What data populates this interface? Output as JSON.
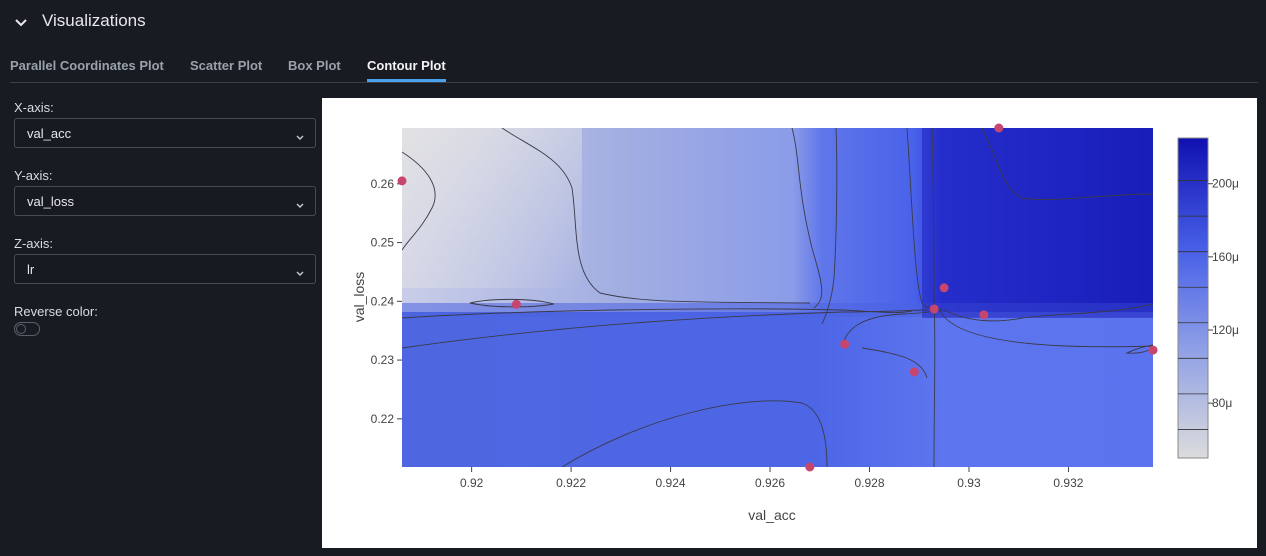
{
  "section": {
    "title": "Visualizations",
    "collapse_icon": "chevron-down-icon"
  },
  "tabs": [
    {
      "label": "Parallel Coordinates Plot",
      "active": false
    },
    {
      "label": "Scatter Plot",
      "active": false
    },
    {
      "label": "Box Plot",
      "active": false
    },
    {
      "label": "Contour Plot",
      "active": true
    }
  ],
  "controls": {
    "x_axis": {
      "label": "X-axis:",
      "value": "val_acc"
    },
    "y_axis": {
      "label": "Y-axis:",
      "value": "val_loss"
    },
    "z_axis": {
      "label": "Z-axis:",
      "value": "lr"
    },
    "reverse_color": {
      "label": "Reverse color:",
      "enabled": false
    }
  },
  "colors": {
    "low": "#dcdcdc",
    "high": "#1010b0",
    "point": "#c8456e",
    "accent": "#4aa3ea"
  },
  "chart_data": {
    "type": "contour",
    "xlabel": "val_acc",
    "ylabel": "val_loss",
    "xlim": [
      0.9186,
      0.9337
    ],
    "ylim": [
      0.2118,
      0.2695
    ],
    "x_ticks": [
      "0.92",
      "0.922",
      "0.924",
      "0.926",
      "0.928",
      "0.93",
      "0.932"
    ],
    "y_ticks": [
      "0.22",
      "0.23",
      "0.24",
      "0.25",
      "0.26"
    ],
    "colorbar": {
      "ticks": [
        "80μ",
        "120μ",
        "160μ",
        "200μ"
      ],
      "range": [
        5e-05,
        0.000225
      ]
    },
    "points": [
      {
        "x": 0.9186,
        "y": 0.2605
      },
      {
        "x": 0.9209,
        "y": 0.2395
      },
      {
        "x": 0.9268,
        "y": 0.2118
      },
      {
        "x": 0.9275,
        "y": 0.2327
      },
      {
        "x": 0.9289,
        "y": 0.228
      },
      {
        "x": 0.9293,
        "y": 0.2387
      },
      {
        "x": 0.9295,
        "y": 0.2423
      },
      {
        "x": 0.9303,
        "y": 0.2377
      },
      {
        "x": 0.9306,
        "y": 0.2695
      },
      {
        "x": 0.9337,
        "y": 0.2317
      }
    ]
  }
}
